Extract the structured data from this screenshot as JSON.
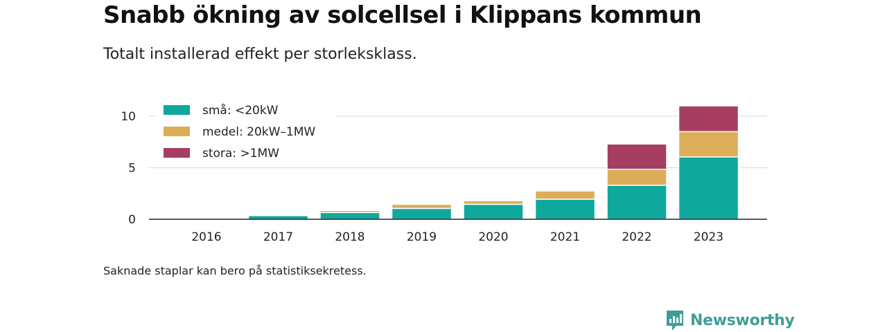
{
  "header": {
    "title": "Snabb ökning av solcellsel i Klippans kommun",
    "subtitle": "Totalt installerad effekt per storleksklass."
  },
  "footer": {
    "note": "Saknade staplar kan bero på statistiksekretess.",
    "brand": "Newsworthy",
    "brand_color": "#3e9e98"
  },
  "chart_data": {
    "type": "bar",
    "stacked": true,
    "categories": [
      "2016",
      "2017",
      "2018",
      "2019",
      "2020",
      "2021",
      "2022",
      "2023"
    ],
    "series": [
      {
        "name": "små: <20kW",
        "color": "#0ea89d",
        "values": [
          0.05,
          0.35,
          0.65,
          1.05,
          1.45,
          1.95,
          3.3,
          6.05
        ]
      },
      {
        "name": "medel: 20kW–1MW",
        "color": "#dcae5a",
        "values": [
          0,
          0,
          0.2,
          0.4,
          0.35,
          0.8,
          1.55,
          2.45
        ]
      },
      {
        "name": "stora: >1MW",
        "color": "#a63e62",
        "values": [
          0,
          0,
          0,
          0,
          0,
          0,
          2.45,
          2.5
        ]
      }
    ],
    "yticks": [
      0,
      5,
      10
    ],
    "ylim": [
      0,
      12
    ],
    "xlabel": "",
    "ylabel": "",
    "grid": true,
    "legend_position": "top-left"
  }
}
